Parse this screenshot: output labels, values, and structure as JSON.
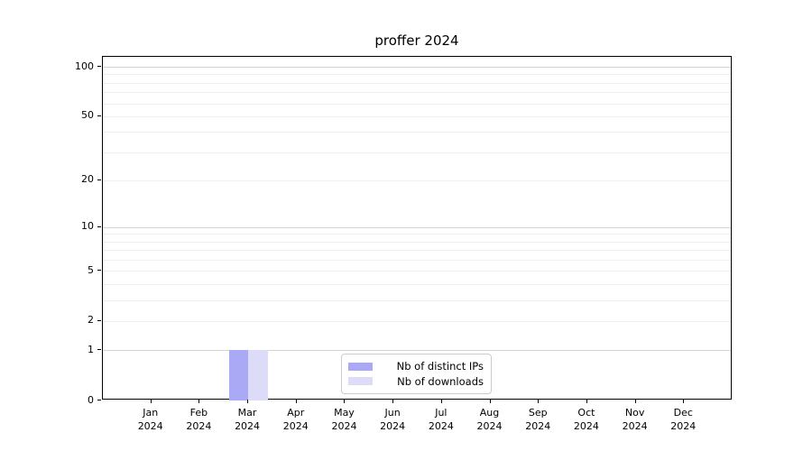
{
  "chart_data": {
    "type": "bar",
    "title": "proffer 2024",
    "categories": [
      {
        "month": "Jan",
        "year": "2024"
      },
      {
        "month": "Feb",
        "year": "2024"
      },
      {
        "month": "Mar",
        "year": "2024"
      },
      {
        "month": "Apr",
        "year": "2024"
      },
      {
        "month": "May",
        "year": "2024"
      },
      {
        "month": "Jun",
        "year": "2024"
      },
      {
        "month": "Jul",
        "year": "2024"
      },
      {
        "month": "Aug",
        "year": "2024"
      },
      {
        "month": "Sep",
        "year": "2024"
      },
      {
        "month": "Oct",
        "year": "2024"
      },
      {
        "month": "Nov",
        "year": "2024"
      },
      {
        "month": "Dec",
        "year": "2024"
      }
    ],
    "series": [
      {
        "name": "Nb of distinct IPs",
        "color": "#a9a9f5",
        "values": [
          0,
          0,
          1,
          0,
          0,
          0,
          0,
          0,
          0,
          0,
          0,
          0
        ]
      },
      {
        "name": "Nb of downloads",
        "color": "#dcdcf8",
        "values": [
          0,
          0,
          1,
          0,
          0,
          0,
          0,
          0,
          0,
          0,
          0,
          0
        ]
      }
    ],
    "xlabel": "",
    "ylabel": "",
    "y_scale": "log1p",
    "y_ticks": [
      0,
      1,
      2,
      5,
      10,
      20,
      50,
      100
    ],
    "y_minor_gridlines": [
      2,
      3,
      4,
      5,
      6,
      7,
      8,
      9,
      20,
      30,
      40,
      50,
      60,
      70,
      80,
      90
    ],
    "y_major_gridlines": [
      1,
      10,
      100
    ],
    "ylim": [
      0,
      115
    ],
    "grid": true,
    "legend_position": "bottom-center"
  },
  "colors": {
    "axis": "#000000",
    "grid_major": "#d4d4d4",
    "grid_minor": "#efefef",
    "background": "#ffffff",
    "legend_border": "#cccccc"
  }
}
